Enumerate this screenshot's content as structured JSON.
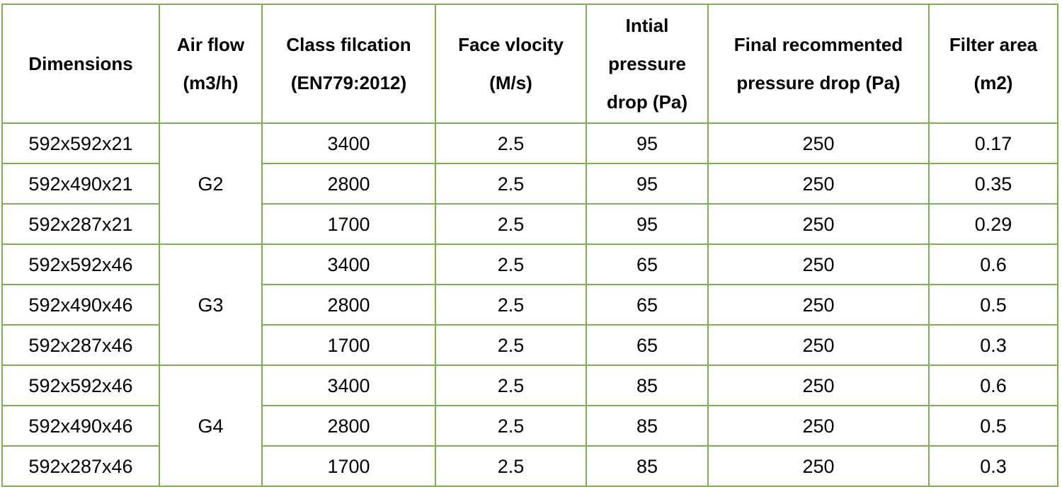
{
  "table": {
    "headers": [
      [
        "Dimensions"
      ],
      [
        "Air flow",
        "(m3/h)"
      ],
      [
        "Class filcation",
        "(EN779:2012)"
      ],
      [
        "Face vlocity",
        "(M/s)"
      ],
      [
        "Intial",
        "pressure",
        "drop (Pa)"
      ],
      [
        "Final recommented",
        "pressure drop (Pa)"
      ],
      [
        "Filter area",
        "(m2)"
      ]
    ],
    "groups": [
      {
        "class": "G2",
        "rows": [
          {
            "dimensions": "592x592x21",
            "air_flow": "3400",
            "face_velocity": "2.5",
            "initial_pd": "95",
            "final_pd": "250",
            "filter_area": "0.17"
          },
          {
            "dimensions": "592x490x21",
            "air_flow": "2800",
            "face_velocity": "2.5",
            "initial_pd": "95",
            "final_pd": "250",
            "filter_area": "0.35"
          },
          {
            "dimensions": "592x287x21",
            "air_flow": "1700",
            "face_velocity": "2.5",
            "initial_pd": "95",
            "final_pd": "250",
            "filter_area": "0.29"
          }
        ]
      },
      {
        "class": "G3",
        "rows": [
          {
            "dimensions": "592x592x46",
            "air_flow": "3400",
            "face_velocity": "2.5",
            "initial_pd": "65",
            "final_pd": "250",
            "filter_area": "0.6"
          },
          {
            "dimensions": "592x490x46",
            "air_flow": "2800",
            "face_velocity": "2.5",
            "initial_pd": "65",
            "final_pd": "250",
            "filter_area": "0.5"
          },
          {
            "dimensions": "592x287x46",
            "air_flow": "1700",
            "face_velocity": "2.5",
            "initial_pd": "65",
            "final_pd": "250",
            "filter_area": "0.3"
          }
        ]
      },
      {
        "class": "G4",
        "rows": [
          {
            "dimensions": "592x592x46",
            "air_flow": "3400",
            "face_velocity": "2.5",
            "initial_pd": "85",
            "final_pd": "250",
            "filter_area": "0.6"
          },
          {
            "dimensions": "592x490x46",
            "air_flow": "2800",
            "face_velocity": "2.5",
            "initial_pd": "85",
            "final_pd": "250",
            "filter_area": "0.5"
          },
          {
            "dimensions": "592x287x46",
            "air_flow": "1700",
            "face_velocity": "2.5",
            "initial_pd": "85",
            "final_pd": "250",
            "filter_area": "0.3"
          }
        ]
      }
    ],
    "border_color": "#7fae53"
  }
}
